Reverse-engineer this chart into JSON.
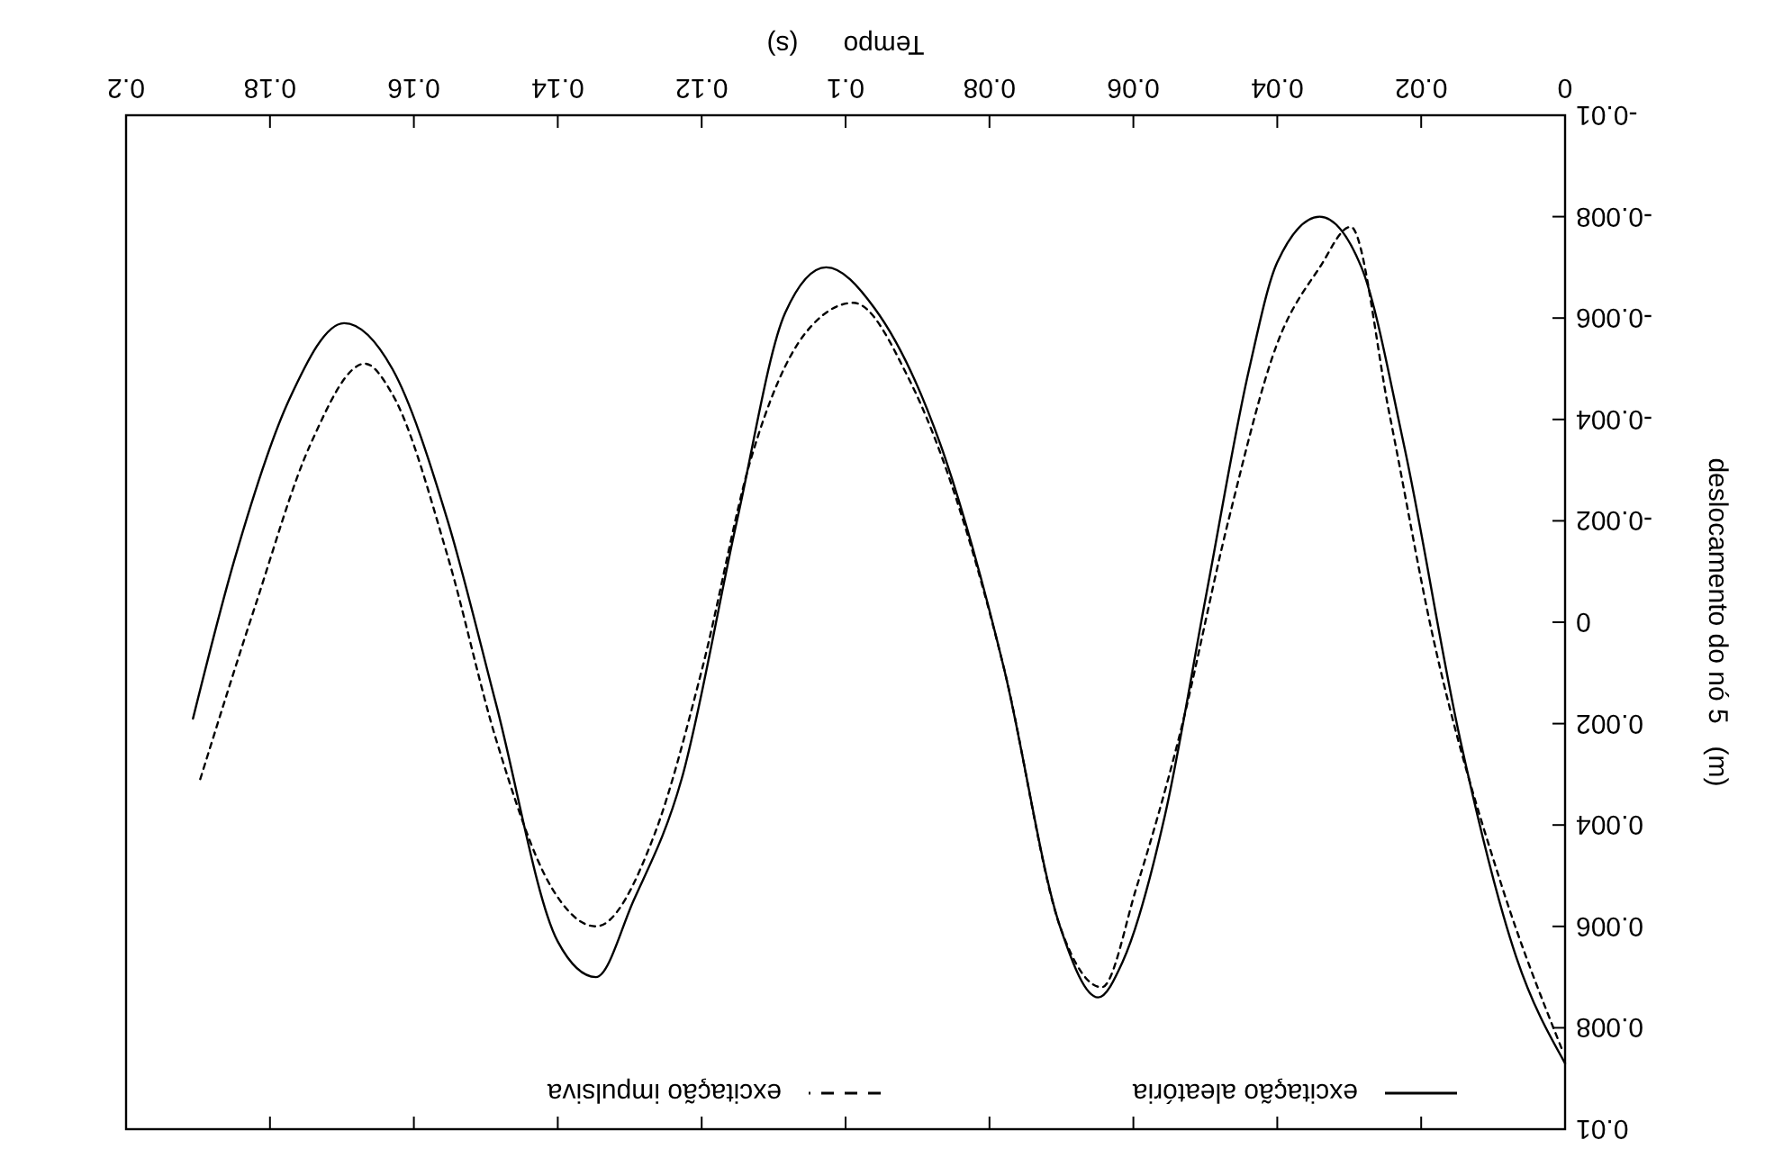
{
  "chart_data": {
    "type": "line",
    "xlabel": "Tempo      (s)",
    "ylabel": "deslocamento do nó 5   (m)",
    "xlim": [
      0.2,
      0
    ],
    "ylim": [
      0.01,
      -0.01
    ],
    "xticks": [
      0,
      0.02,
      0.04,
      0.06,
      0.08,
      0.1,
      0.12,
      0.14,
      0.16,
      0.18,
      0.2
    ],
    "yticks": [
      -0.01,
      -0.008,
      -0.006,
      -0.004,
      -0.002,
      0,
      0.002,
      0.004,
      0.006,
      0.008,
      0.01
    ],
    "grid": false,
    "legend": "bottom",
    "series": [
      {
        "name": "excitação aleatória",
        "color": "#000000",
        "line_style": "solid",
        "x": [
          0,
          0.0068,
          0.0146,
          0.0224,
          0.0283,
          0.0341,
          0.04,
          0.0439,
          0.0498,
          0.0556,
          0.0615,
          0.0649,
          0.0702,
          0.078,
          0.0868,
          0.096,
          0.1027,
          0.1084,
          0.1151,
          0.1228,
          0.1295,
          0.1347,
          0.14,
          0.1486,
          0.1553,
          0.163,
          0.1697,
          0.1773,
          0.185,
          0.1907
        ],
        "values": [
          0.0087,
          0.0066,
          0.0023,
          -0.0035,
          -0.007,
          -0.008,
          -0.0071,
          -0.005,
          -0.0006,
          0.0038,
          0.0067,
          0.0074,
          0.006,
          0.0009,
          -0.0035,
          -0.0062,
          -0.007,
          -0.0061,
          -0.002,
          0.0031,
          0.0055,
          0.007,
          0.0063,
          0.0016,
          -0.002,
          -0.005,
          -0.0059,
          -0.0044,
          -0.0012,
          0.0019
        ]
      },
      {
        "name": "excitação impulsiva",
        "color": "#000000",
        "line_style": "dashed",
        "x": [
          0.0005,
          0.0088,
          0.0185,
          0.0244,
          0.0298,
          0.0341,
          0.04,
          0.0468,
          0.0537,
          0.0595,
          0.0644,
          0.0702,
          0.078,
          0.0912,
          0.0989,
          0.1056,
          0.1132,
          0.1199,
          0.1266,
          0.1347,
          0.141,
          0.1486,
          0.1553,
          0.163,
          0.1668,
          0.1744,
          0.1821,
          0.1897
        ],
        "values": [
          0.0084,
          0.0052,
          0.0002,
          -0.0041,
          -0.0078,
          -0.007,
          -0.0055,
          -0.002,
          0.0023,
          0.0052,
          0.0072,
          0.006,
          0.0009,
          -0.0048,
          -0.0063,
          -0.0057,
          -0.0032,
          0.0009,
          0.0042,
          0.006,
          0.0052,
          0.0023,
          -0.0013,
          -0.0045,
          -0.0051,
          -0.0035,
          -0.0003,
          0.0031
        ]
      }
    ]
  }
}
